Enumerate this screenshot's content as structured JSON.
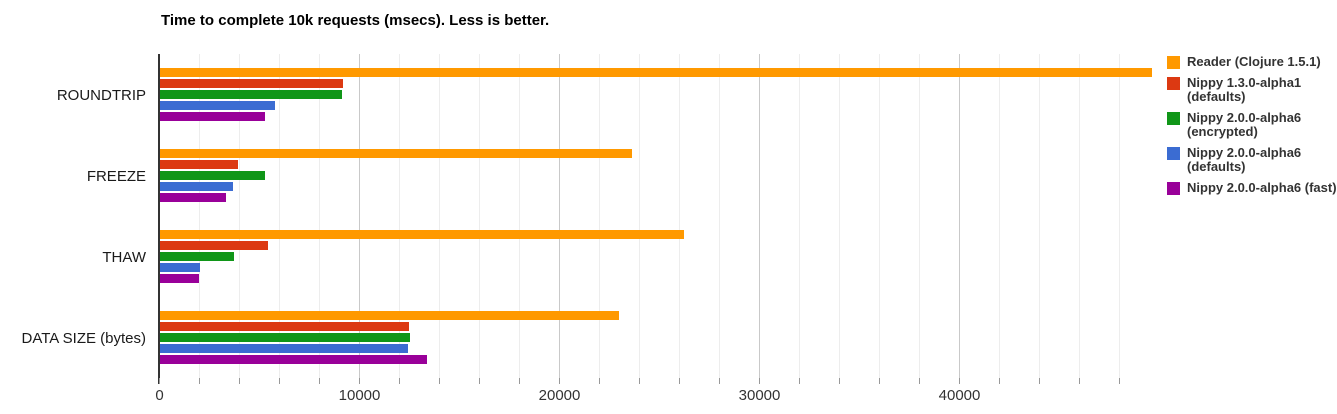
{
  "chart_data": {
    "type": "bar",
    "orientation": "horizontal",
    "title": "Time to complete 10k requests (msecs). Less is better.",
    "categories": [
      "ROUNDTRIP",
      "FREEZE",
      "THAW",
      "DATA SIZE (bytes)"
    ],
    "series": [
      {
        "name": "Reader (Clojure 1.5.1)",
        "legend_lines": [
          "Reader (Clojure 1.5.1)"
        ],
        "color": "#FF9900",
        "values": [
          49600,
          23600,
          26200,
          22950
        ]
      },
      {
        "name": "Nippy 1.3.0-alpha1 (defaults)",
        "legend_lines": [
          "Nippy 1.3.0-alpha1",
          "(defaults)"
        ],
        "color": "#DC3912",
        "values": [
          9150,
          3920,
          5400,
          12480
        ]
      },
      {
        "name": "Nippy 2.0.0-alpha6 (encrypted)",
        "legend_lines": [
          "Nippy 2.0.0-alpha6",
          "(encrypted)"
        ],
        "color": "#109618",
        "values": [
          9100,
          5250,
          3700,
          12500
        ]
      },
      {
        "name": "Nippy 2.0.0-alpha6 (defaults)",
        "legend_lines": [
          "Nippy 2.0.0-alpha6",
          "(defaults)"
        ],
        "color": "#3B6CD2",
        "values": [
          5780,
          3650,
          2000,
          12420
        ]
      },
      {
        "name": "Nippy 2.0.0-alpha6 (fast)",
        "legend_lines": [
          "Nippy 2.0.0-alpha6 (fast)"
        ],
        "color": "#990099",
        "values": [
          5290,
          3300,
          1950,
          13370
        ]
      }
    ],
    "x_axis": {
      "min": 0,
      "max": 50000,
      "tick_values": [
        0,
        10000,
        20000,
        30000,
        40000
      ],
      "tick_labels": [
        "0",
        "10000",
        "20000",
        "30000",
        "40000"
      ],
      "minor_gridline_step": 2000,
      "major_gridline_step": 10000
    },
    "grid": true,
    "legend_position": "right"
  }
}
